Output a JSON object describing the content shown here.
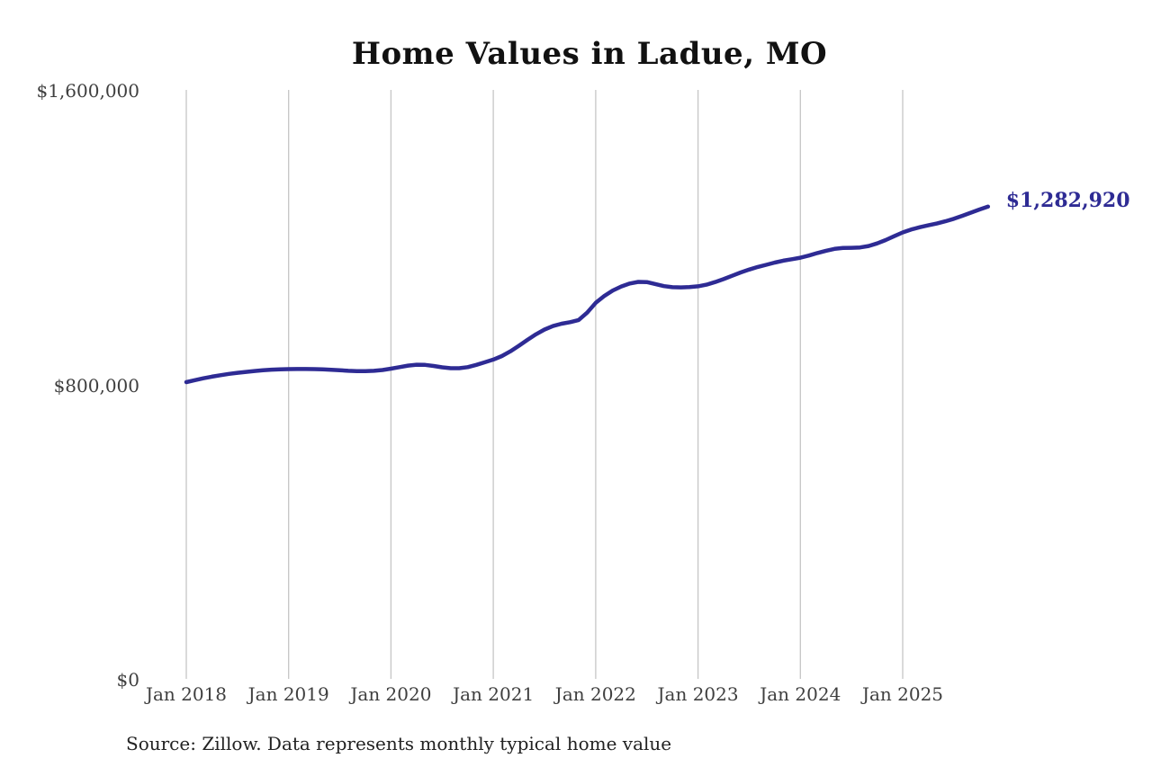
{
  "chart_data": {
    "type": "line",
    "title": "Home Values in Ladue, MO",
    "source": "Source: Zillow. Data represents monthly typical home value",
    "end_label": "$1,282,920",
    "end_value": 1282920,
    "frequency": "monthly",
    "x_start": "Jan 2018",
    "x_end": "Nov 2025",
    "ylim": [
      0,
      1600000
    ],
    "grid": "vertical-only",
    "line_color": "#2e2b94",
    "grid_color": "#c6c6c6",
    "axis_text_color": "#3f3f3f",
    "ytick_labels": [
      "$1,600,000",
      "$800,000",
      "$0"
    ],
    "ytick_values": [
      1600000,
      800000,
      0
    ],
    "xtick_labels": [
      "Jan 2018",
      "Jan 2019",
      "Jan 2020",
      "Jan 2021",
      "Jan 2022",
      "Jan 2023",
      "Jan 2024",
      "Jan 2025"
    ],
    "xtick_month_offsets": [
      0,
      12,
      24,
      36,
      48,
      60,
      72,
      84
    ],
    "series": [
      {
        "name": "Typical home value",
        "values": [
          806000,
          811500,
          816500,
          821000,
          825000,
          828500,
          831500,
          834000,
          836500,
          838500,
          840000,
          841000,
          841500,
          841800,
          841800,
          841500,
          840800,
          839800,
          838500,
          837000,
          836000,
          835800,
          836800,
          839200,
          842800,
          847000,
          851000,
          853500,
          853000,
          850000,
          846500,
          844000,
          844000,
          847000,
          853000,
          860000,
          867300,
          877000,
          890000,
          905000,
          921000,
          936000,
          949000,
          958500,
          965000,
          969000,
          975000,
          995000,
          1021650,
          1040000,
          1055000,
          1066000,
          1074000,
          1078500,
          1078000,
          1072500,
          1067000,
          1064000,
          1063500,
          1064500,
          1066500,
          1071000,
          1078000,
          1086000,
          1095000,
          1104000,
          1112000,
          1119000,
          1125000,
          1131000,
          1136000,
          1140000,
          1144150,
          1150000,
          1157000,
          1163000,
          1168000,
          1170500,
          1171000,
          1172000,
          1176000,
          1183000,
          1192000,
          1202500,
          1212750,
          1221000,
          1227000,
          1232000,
          1237000,
          1243000,
          1250000,
          1258000,
          1266500,
          1275000,
          1282920
        ]
      }
    ]
  }
}
